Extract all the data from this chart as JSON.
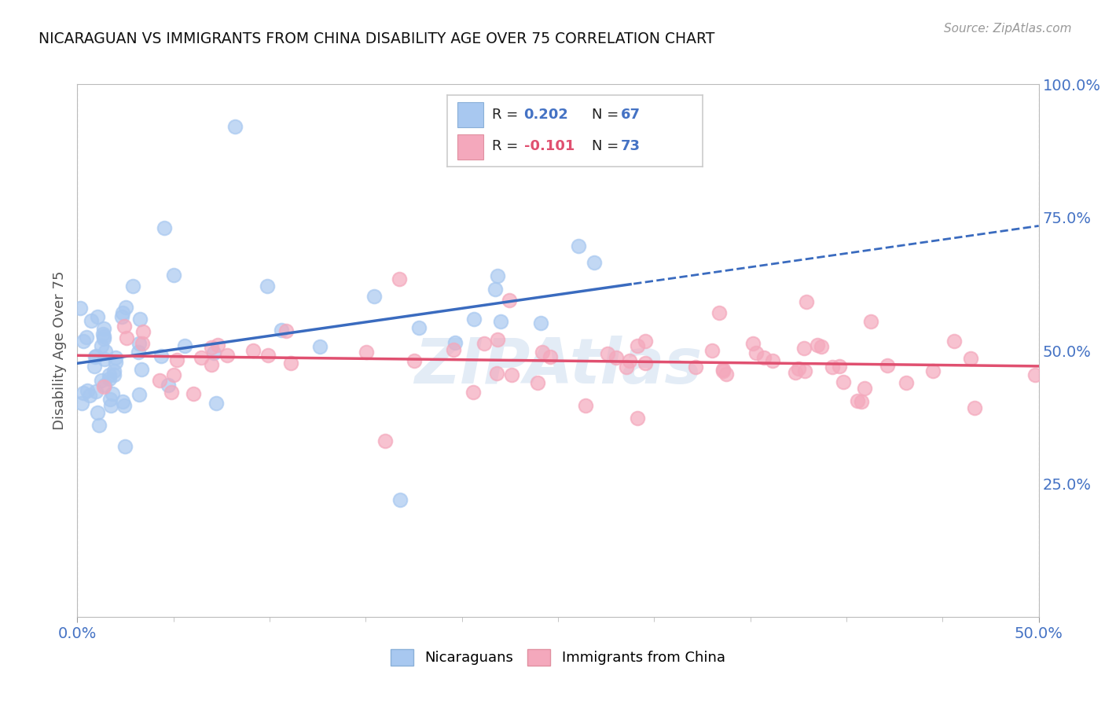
{
  "title": "NICARAGUAN VS IMMIGRANTS FROM CHINA DISABILITY AGE OVER 75 CORRELATION CHART",
  "source": "Source: ZipAtlas.com",
  "ylabel": "Disability Age Over 75",
  "xlim": [
    0.0,
    0.5
  ],
  "ylim": [
    0.0,
    1.0
  ],
  "nicaraguan_color": "#a8c8f0",
  "china_color": "#f4a8bc",
  "nicaraguan_line_color": "#3a6bbf",
  "china_line_color": "#e05070",
  "background_color": "#ffffff",
  "grid_color": "#dddddd",
  "watermark": "ZIPAtlas",
  "r_nicaraguan": "0.202",
  "n_nicaraguan": "67",
  "r_china": "-0.101",
  "n_china": "73",
  "label_color": "#4472c4",
  "label_r_nic_color": "#4472c4",
  "label_r_chi_color": "#e05070",
  "label_n_color": "#4472c4"
}
